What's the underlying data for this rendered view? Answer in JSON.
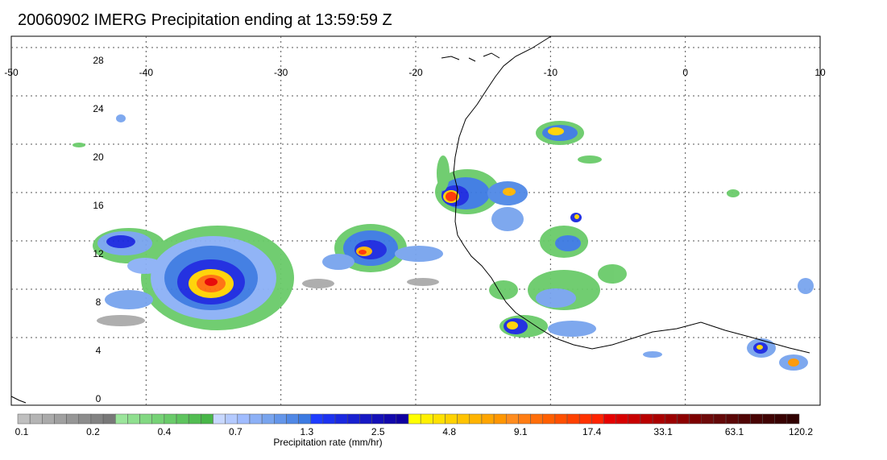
{
  "title": "20060902 IMERG Precipitation ending at 13:59:59 Z",
  "map": {
    "lon_ticks": [
      "-50",
      "-40",
      "-30",
      "-20",
      "-10",
      "0",
      "10"
    ],
    "lat_ticks": [
      "28",
      "24",
      "20",
      "16",
      "12",
      "8",
      "4",
      "0"
    ]
  },
  "colorbar": {
    "title": "Precipitation rate (mm/hr)",
    "labels": [
      "0.1",
      "0.2",
      "0.4",
      "0.7",
      "1.3",
      "2.5",
      "4.8",
      "9.1",
      "17.4",
      "33.1",
      "63.1",
      "120.2"
    ],
    "colors": [
      "#bfbfbf",
      "#b4b4b4",
      "#aaaaaa",
      "#a0a0a0",
      "#969696",
      "#8c8c8c",
      "#828282",
      "#787878",
      "#9be59b",
      "#8fdf8f",
      "#82d882",
      "#76d276",
      "#6acb6a",
      "#5ec45e",
      "#52bd52",
      "#48b648",
      "#c8d8ff",
      "#b4caff",
      "#a0bcff",
      "#8cb0f6",
      "#78a4ee",
      "#6496ea",
      "#5088e6",
      "#3c7ae2",
      "#1e3cff",
      "#1c32f0",
      "#1a28e0",
      "#1820d0",
      "#1618c4",
      "#1410b8",
      "#1208ac",
      "#1000a0",
      "#ffff00",
      "#fff000",
      "#ffe100",
      "#ffd200",
      "#ffc300",
      "#ffb400",
      "#ffa500",
      "#ff9600",
      "#ff8c1e",
      "#ff7d14",
      "#ff6e0a",
      "#ff5f00",
      "#ff5000",
      "#ff4100",
      "#ff3200",
      "#ff2300",
      "#e60000",
      "#d70000",
      "#c80000",
      "#b90000",
      "#aa0000",
      "#9b0000",
      "#8c0000",
      "#7d0000",
      "#6e0a0a",
      "#640808",
      "#5a0606",
      "#500505",
      "#480404",
      "#400303",
      "#380202",
      "#300101"
    ]
  }
}
